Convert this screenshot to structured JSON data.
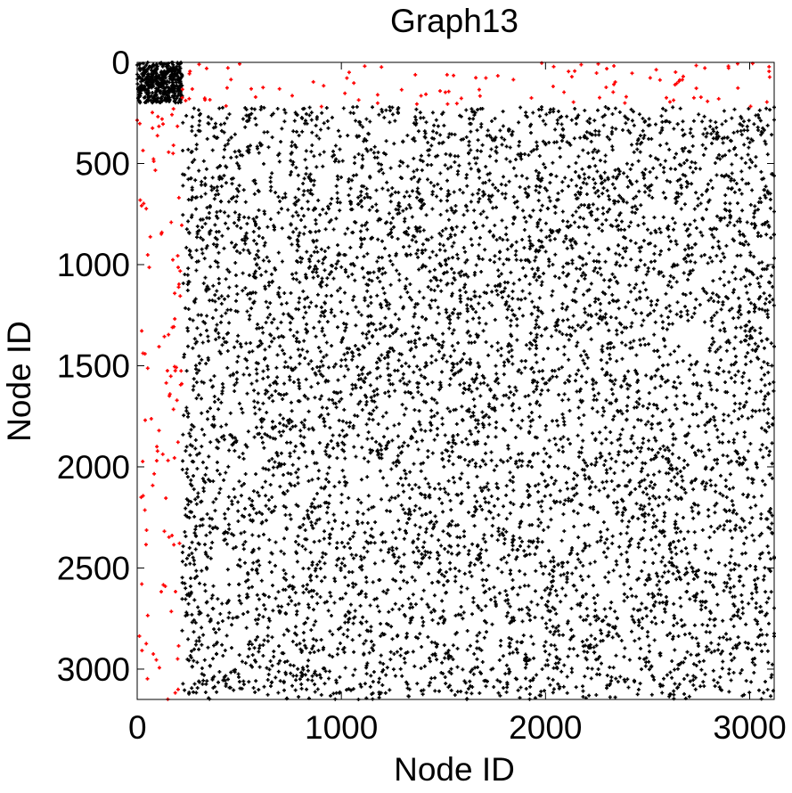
{
  "chart_data": {
    "type": "scatter",
    "title": "Graph13",
    "xlabel": "Node ID",
    "ylabel": "Node ID",
    "xlim": [
      0,
      3120
    ],
    "ylim": [
      0,
      3150
    ],
    "y_inverted": true,
    "grid": false,
    "legend": "none",
    "marker": "plus",
    "x_ticks": [
      0,
      1000,
      2000,
      3000
    ],
    "y_ticks": [
      0,
      500,
      1000,
      1500,
      2000,
      2500,
      3000
    ],
    "x_tick_labels": [
      "0",
      "1000",
      "2000",
      "3000"
    ],
    "y_tick_labels": [
      "0",
      "500",
      "1000",
      "1500",
      "2000",
      "2500",
      "3000"
    ],
    "series": [
      {
        "color": "#000000",
        "description_of_region": "dense block near origin plus bulk of matrix",
        "corner_block": {
          "x_range": [
            0,
            220
          ],
          "y_range": [
            0,
            200
          ]
        },
        "bulk_region": {
          "x_range": [
            220,
            3120
          ],
          "y_range": [
            220,
            3150
          ]
        },
        "approx_point_count": 7000
      },
      {
        "color": "#ff0000",
        "top_band": {
          "x_range": [
            220,
            3120
          ],
          "y_range": [
            0,
            220
          ]
        },
        "left_band": {
          "x_range": [
            0,
            220
          ],
          "y_range": [
            220,
            3150
          ]
        },
        "approx_point_count": 210
      }
    ]
  }
}
